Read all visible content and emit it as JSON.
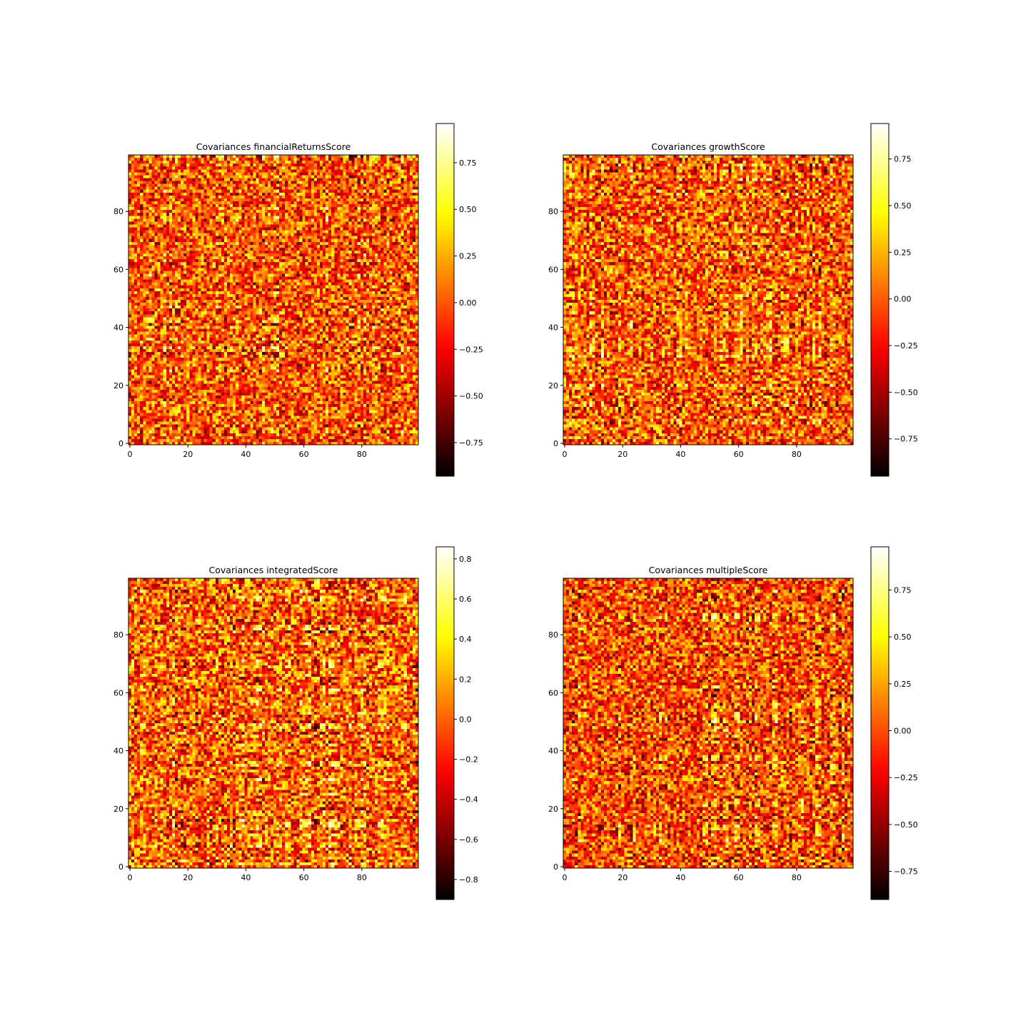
{
  "chart_data": [
    {
      "type": "heatmap",
      "title": "Covariances financialReturnsScore",
      "xlabel": "",
      "ylabel": "",
      "colormap": "hot",
      "grid_size": [
        100,
        100
      ],
      "xlim": [
        0,
        99
      ],
      "ylim": [
        0,
        99
      ],
      "x_ticks": [
        0,
        20,
        40,
        60,
        80
      ],
      "y_ticks": [
        0,
        20,
        40,
        60,
        80
      ],
      "colorbar": {
        "range": [
          -0.93,
          0.96
        ],
        "ticks": [
          0.75,
          0.5,
          0.25,
          0.0,
          -0.25,
          -0.5,
          -0.75
        ],
        "tick_labels": [
          "0.75",
          "0.50",
          "0.25",
          "0.00",
          "−0.25",
          "−0.50",
          "−0.75"
        ]
      },
      "seed": 11
    },
    {
      "type": "heatmap",
      "title": "Covariances growthScore",
      "xlabel": "",
      "ylabel": "",
      "colormap": "hot",
      "grid_size": [
        100,
        100
      ],
      "xlim": [
        0,
        99
      ],
      "ylim": [
        0,
        99
      ],
      "x_ticks": [
        0,
        20,
        40,
        60,
        80
      ],
      "y_ticks": [
        0,
        20,
        40,
        60,
        80
      ],
      "colorbar": {
        "range": [
          -0.95,
          0.94
        ],
        "ticks": [
          0.75,
          0.5,
          0.25,
          0.0,
          -0.25,
          -0.5,
          -0.75
        ],
        "tick_labels": [
          "0.75",
          "0.50",
          "0.25",
          "0.00",
          "−0.25",
          "−0.50",
          "−0.75"
        ]
      },
      "seed": 23
    },
    {
      "type": "heatmap",
      "title": "Covariances integratedScore",
      "xlabel": "",
      "ylabel": "",
      "colormap": "hot",
      "grid_size": [
        100,
        100
      ],
      "xlim": [
        0,
        99
      ],
      "ylim": [
        0,
        99
      ],
      "x_ticks": [
        0,
        20,
        40,
        60,
        80
      ],
      "y_ticks": [
        0,
        20,
        40,
        60,
        80
      ],
      "colorbar": {
        "range": [
          -0.9,
          0.86
        ],
        "ticks": [
          0.8,
          0.6,
          0.4,
          0.2,
          0.0,
          -0.2,
          -0.4,
          -0.6,
          -0.8
        ],
        "tick_labels": [
          "0.8",
          "0.6",
          "0.4",
          "0.2",
          "0.0",
          "−0.2",
          "−0.4",
          "−0.6",
          "−0.8"
        ]
      },
      "seed": 37
    },
    {
      "type": "heatmap",
      "title": "Covariances multipleScore",
      "xlabel": "",
      "ylabel": "",
      "colormap": "hot",
      "grid_size": [
        100,
        100
      ],
      "xlim": [
        0,
        99
      ],
      "ylim": [
        0,
        99
      ],
      "x_ticks": [
        0,
        20,
        40,
        60,
        80
      ],
      "y_ticks": [
        0,
        20,
        40,
        60,
        80
      ],
      "colorbar": {
        "range": [
          -0.9,
          0.98
        ],
        "ticks": [
          0.75,
          0.5,
          0.25,
          0.0,
          -0.25,
          -0.5,
          -0.75
        ],
        "tick_labels": [
          "0.75",
          "0.50",
          "0.25",
          "0.00",
          "−0.25",
          "−0.50",
          "−0.75"
        ]
      },
      "seed": 53
    }
  ]
}
